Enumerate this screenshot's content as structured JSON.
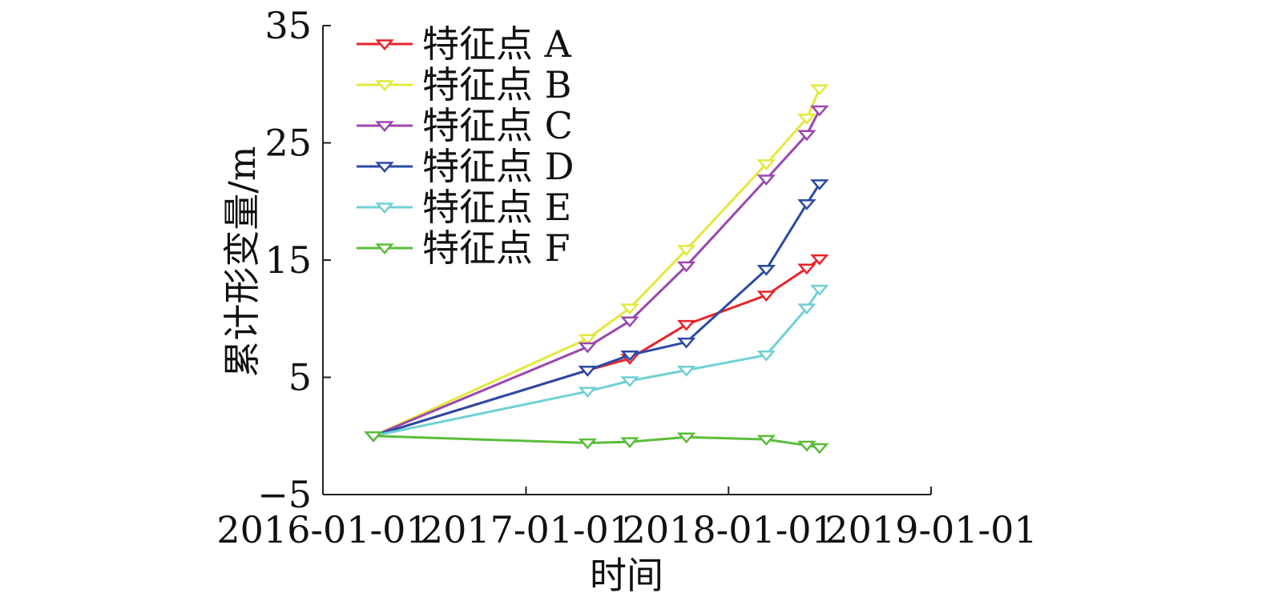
{
  "chart_data": {
    "type": "line",
    "xlabel": "时间",
    "ylabel": "累计形变量/m",
    "xlim": [
      "2016-01-01",
      "2019-01-01"
    ],
    "ylim": [
      -5,
      35
    ],
    "x_ticks": [
      "2016-01-01",
      "2017-01-01",
      "2018-01-01",
      "2019-01-01"
    ],
    "y_ticks": [
      -5,
      5,
      15,
      25,
      35
    ],
    "y_tick_labels": [
      "−5",
      "5",
      "15",
      "25",
      "35"
    ],
    "legend_position": "top-left",
    "marker": "downward-triangle",
    "series": [
      {
        "name": "特征点 A",
        "color": "#e8242a",
        "x": [
          "2016-04-01",
          "2017-04-22",
          "2017-07-07",
          "2017-10-17",
          "2018-03-10",
          "2018-05-22",
          "2018-06-14"
        ],
        "y": [
          0,
          5.6,
          6.6,
          9.5,
          12.0,
          14.3,
          15.1
        ]
      },
      {
        "name": "特征点 B",
        "color": "#e4e83c",
        "x": [
          "2016-04-01",
          "2017-04-22",
          "2017-07-07",
          "2017-10-17",
          "2018-03-10",
          "2018-05-22",
          "2018-06-14"
        ],
        "y": [
          0,
          8.3,
          10.9,
          15.9,
          23.2,
          27.1,
          29.6
        ]
      },
      {
        "name": "特征点 C",
        "color": "#9b47ae",
        "x": [
          "2016-04-01",
          "2017-04-22",
          "2017-07-07",
          "2017-10-17",
          "2018-03-10",
          "2018-05-22",
          "2018-06-14"
        ],
        "y": [
          0,
          7.6,
          9.8,
          14.5,
          21.9,
          25.7,
          27.8
        ]
      },
      {
        "name": "特征点 D",
        "color": "#2b4aa4",
        "x": [
          "2016-04-01",
          "2017-04-22",
          "2017-07-07",
          "2017-10-17",
          "2018-03-10",
          "2018-05-22",
          "2018-06-14"
        ],
        "y": [
          0,
          5.6,
          6.9,
          8.0,
          14.2,
          19.8,
          21.5
        ]
      },
      {
        "name": "特征点 E",
        "color": "#6fd0d4",
        "x": [
          "2016-04-01",
          "2017-04-22",
          "2017-07-07",
          "2017-10-17",
          "2018-03-10",
          "2018-05-22",
          "2018-06-14"
        ],
        "y": [
          0,
          3.8,
          4.7,
          5.6,
          6.9,
          10.9,
          12.5
        ]
      },
      {
        "name": "特征点 F",
        "color": "#5bbd3a",
        "x": [
          "2016-04-01",
          "2017-04-22",
          "2017-07-07",
          "2017-10-17",
          "2018-03-10",
          "2018-05-22",
          "2018-06-14"
        ],
        "y": [
          0,
          -0.6,
          -0.5,
          -0.1,
          -0.3,
          -0.8,
          -1.0
        ]
      }
    ]
  }
}
